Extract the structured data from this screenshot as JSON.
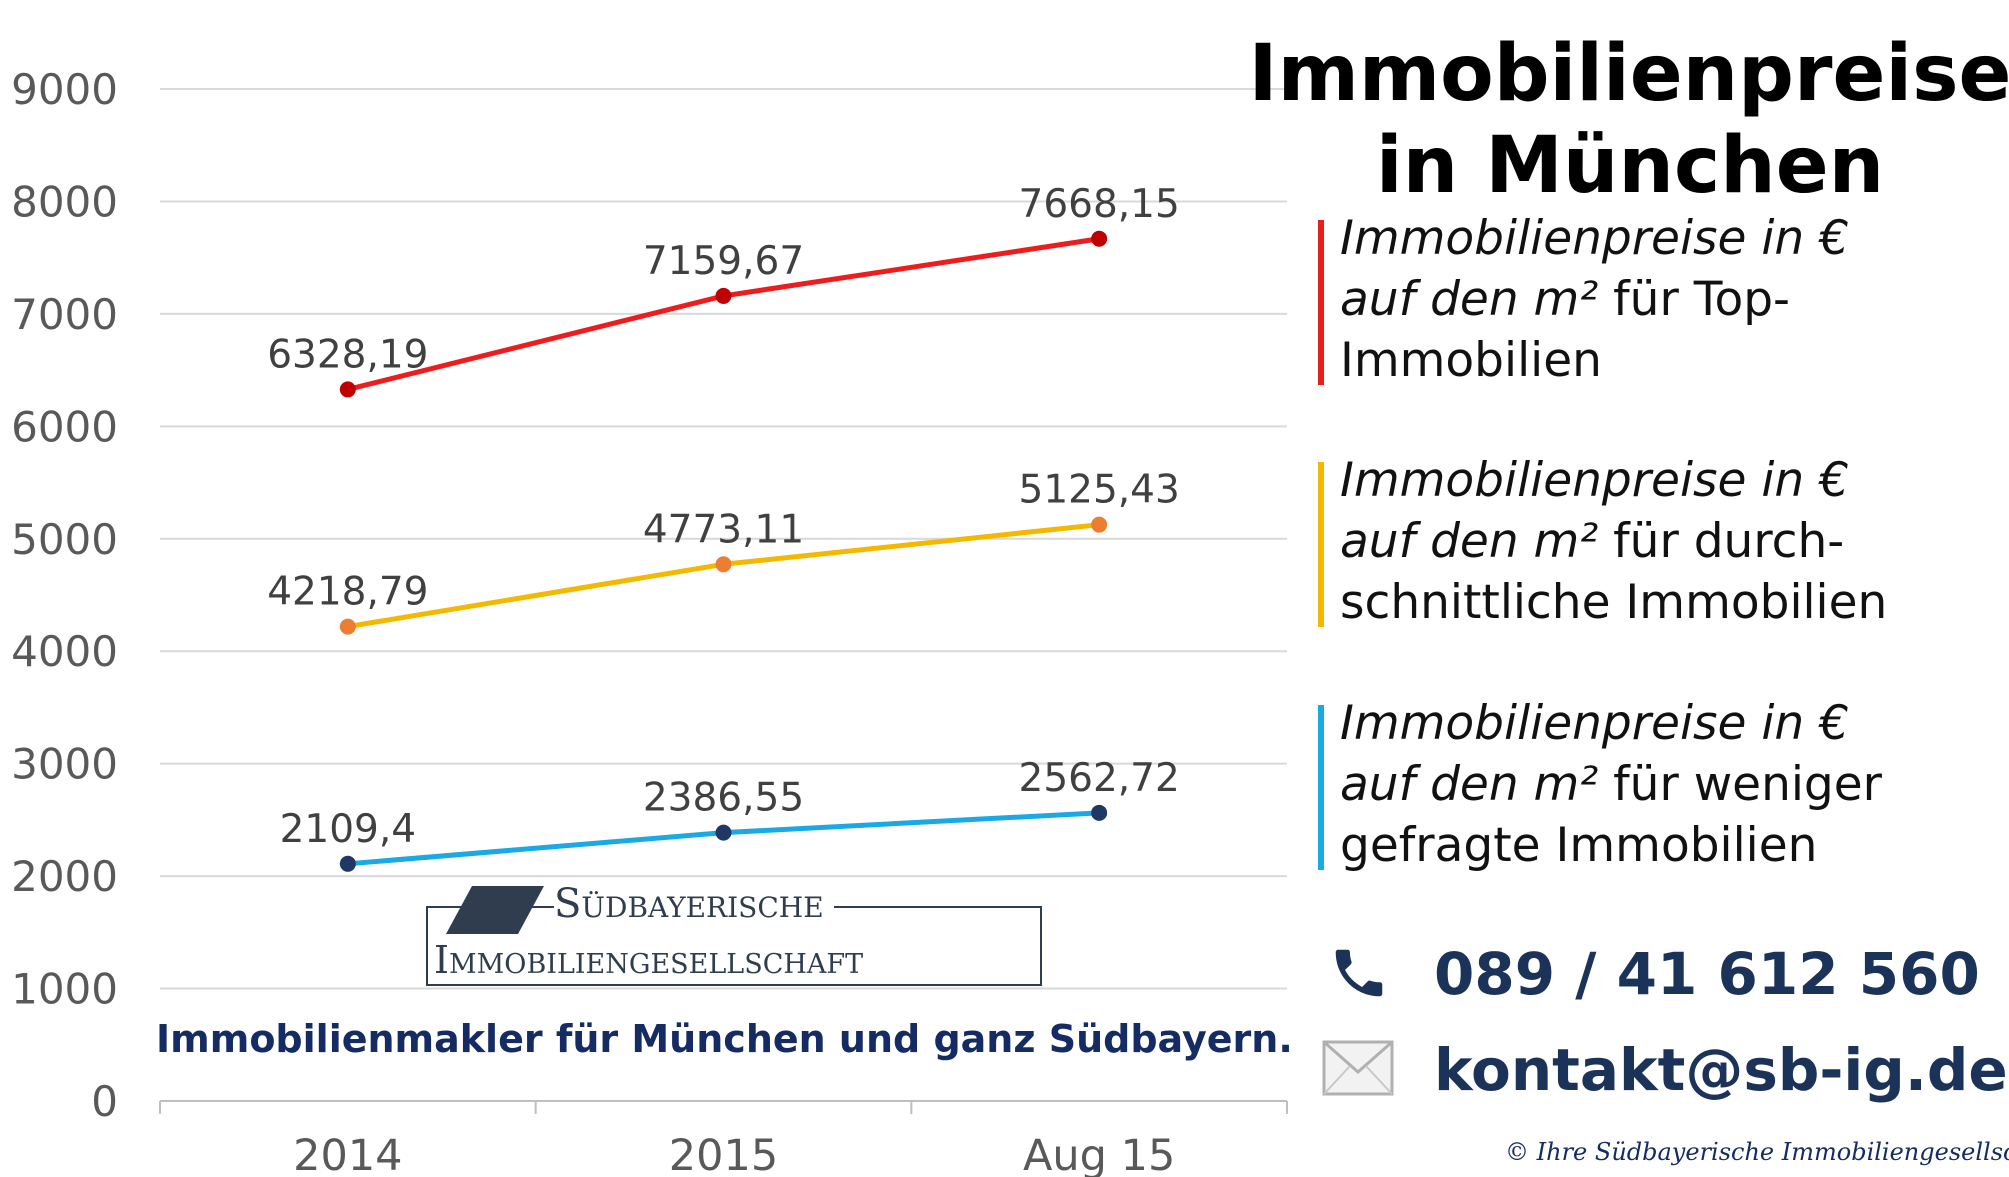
{
  "title": {
    "line1": "Immobilienpreise",
    "line2": "in München"
  },
  "legend": [
    {
      "prefix": "Immobilienpreise in €",
      "line2_italic": "auf den m²",
      "line2_rest": " für Top-",
      "line3": "Immobilien",
      "color": "#e8201b"
    },
    {
      "prefix": "Immobilienpreise in €",
      "line2_italic": "auf den m²",
      "line2_rest": " für durch-",
      "line3": "schnittliche Immobilien",
      "color": "#f5b800"
    },
    {
      "prefix": "Immobilienpreise in €",
      "line2_italic": "auf den m²",
      "line2_rest": " für weniger",
      "line3": "gefragte Immobilien",
      "color": "#1aa9e3"
    }
  ],
  "contact": {
    "phone": "089 / 41 612 560",
    "email": "kontakt@sb-ig.de",
    "phone_icon": "phone-icon",
    "email_icon": "envelope-icon",
    "color": "#1b3358"
  },
  "logo": {
    "line1": "Südbayerische",
    "line2": "Immobiliengesellschaft"
  },
  "tagline": "Immobilienmakler für München und ganz Südbayern.",
  "copyright": "© Ihre Südbayerische Immobiliengesellschaft",
  "chart_data": {
    "type": "line",
    "categories": [
      "2014",
      "2015",
      "Aug 15"
    ],
    "ylim": [
      0,
      9000
    ],
    "yticks": [
      0,
      1000,
      2000,
      3000,
      4000,
      5000,
      6000,
      7000,
      8000,
      9000
    ],
    "grid": true,
    "series": [
      {
        "values": [
          6328.19,
          7159.67,
          7668.15
        ],
        "labels": [
          "6328,19",
          "7159,67",
          "7668,15"
        ],
        "line_color": "#ee1c1c",
        "marker_color": "#c00000"
      },
      {
        "values": [
          4218.79,
          4773.11,
          5125.43
        ],
        "labels": [
          "4218,79",
          "4773,11",
          "5125,43"
        ],
        "line_color": "#f5b800",
        "marker_color": "#ed7d31"
      },
      {
        "values": [
          2109.4,
          2386.55,
          2562.72
        ],
        "labels": [
          "2109,4",
          "2386,55",
          "2562,72"
        ],
        "line_color": "#1aa9e3",
        "marker_color": "#1f3864"
      }
    ]
  }
}
